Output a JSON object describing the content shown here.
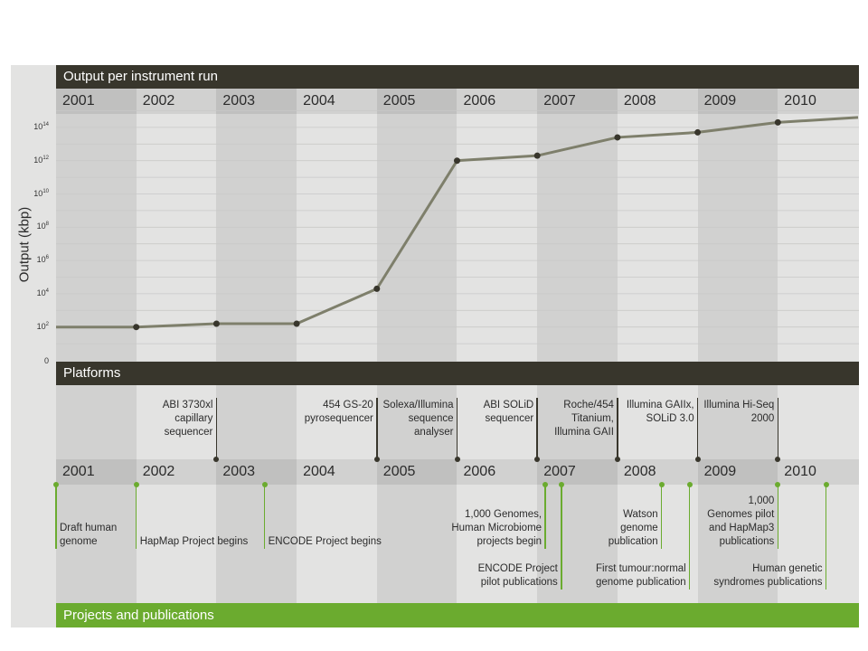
{
  "sections": {
    "output_title": "Output per instrument run",
    "platforms_title": "Platforms",
    "projects_title": "Projects and publications"
  },
  "years": [
    "2001",
    "2002",
    "2003",
    "2004",
    "2005",
    "2006",
    "2007",
    "2008",
    "2009",
    "2010"
  ],
  "colors": {
    "dark_bar": "#38362c",
    "green_bar": "#6bab2f",
    "line": "#7e7f6b",
    "band_dark": "#d1d1d0",
    "band_light": "#e3e3e2"
  },
  "chart_data": {
    "type": "line",
    "title": "Output per instrument run",
    "xlabel": "",
    "ylabel": "Output (kbp)",
    "y_scale": "log",
    "y_ticks": [
      "0",
      "10^2",
      "10^4",
      "10^6",
      "10^8",
      "10^10",
      "10^12",
      "10^14"
    ],
    "xlim": [
      2001,
      2011
    ],
    "ylim_exponent": [
      0,
      15
    ],
    "grid": true,
    "series": [
      {
        "x": [
          2001.0,
          2002.0,
          2003.0,
          2004.0,
          2005.0,
          2006.0,
          2007.0,
          2008.0,
          2009.0,
          2010.0,
          2011.0
        ],
        "y_exponent": [
          2.0,
          2.0,
          2.2,
          2.2,
          4.3,
          12.0,
          12.3,
          13.4,
          13.7,
          14.3,
          14.6
        ]
      }
    ]
  },
  "platforms": [
    {
      "label": "ABI 3730xl\ncapillary\nsequencer",
      "year": 2003.0
    },
    {
      "label": "454 GS-20\npyrosequencer",
      "year": 2005.0
    },
    {
      "label": "Solexa/Illumina\nsequence\nanalyser",
      "year": 2006.0
    },
    {
      "label": "ABI SOLiD\nsequencer",
      "year": 2007.0
    },
    {
      "label": "Roche/454\nTitanium,\nIllumina GAII",
      "year": 2008.0
    },
    {
      "label": "Illumina GAIIx,\nSOLiD 3.0",
      "year": 2009.0
    },
    {
      "label": "Illumina Hi-Seq\n2000",
      "year": 2010.0
    }
  ],
  "projects": [
    {
      "label": "Draft human\ngenome",
      "year": 2001.0,
      "align": "left"
    },
    {
      "label": "HapMap Project begins",
      "year": 2002.0,
      "align": "left"
    },
    {
      "label": "ENCODE Project begins",
      "year": 2003.6,
      "align": "left"
    },
    {
      "label": "1,000 Genomes,\nHuman Microbiome\nprojects begin",
      "year": 2007.1,
      "align": "right"
    },
    {
      "label": "ENCODE Project\npilot publications",
      "year": 2007.3,
      "align": "right"
    },
    {
      "label": "Watson\ngenome\npublication",
      "year": 2008.55,
      "align": "right"
    },
    {
      "label": "First tumour:normal\ngenome publication",
      "year": 2008.9,
      "align": "right"
    },
    {
      "label": "1,000\nGenomes pilot\nand HapMap3\npublications",
      "year": 2010.0,
      "align": "right"
    },
    {
      "label": "Human genetic\nsyndromes publications",
      "year": 2010.6,
      "align": "right"
    }
  ]
}
